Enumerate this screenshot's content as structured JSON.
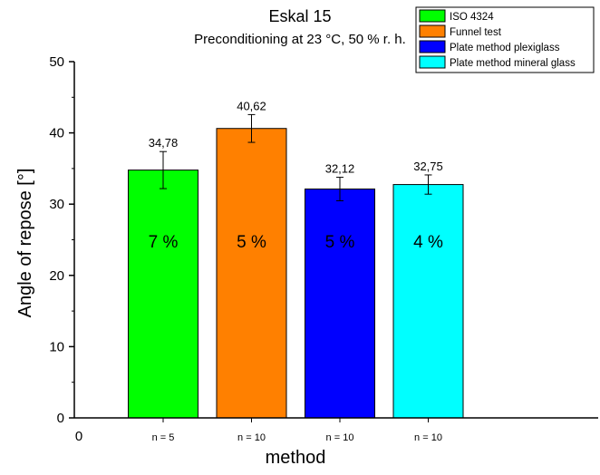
{
  "chart_data": {
    "type": "bar",
    "title": "Eskal 15",
    "subtitle": "Preconditioning at 23 °C, 50 % r. h.",
    "xlabel": "method",
    "ylabel": "Angle of repose [°]",
    "ylim": [
      0,
      50
    ],
    "yticks": [
      0,
      10,
      20,
      30,
      40,
      50
    ],
    "x_origin_label": "0",
    "categories": [
      "n = 5",
      "n = 10",
      "n = 10",
      "n = 10"
    ],
    "series": [
      {
        "name": "ISO 4324",
        "color": "#00ff00",
        "value": 34.78,
        "value_label": "34,78",
        "error": 2.6,
        "percent_label": "7 %"
      },
      {
        "name": "Funnel test",
        "color": "#ff8000",
        "value": 40.62,
        "value_label": "40,62",
        "error": 1.95,
        "percent_label": "5 %"
      },
      {
        "name": "Plate method plexiglass",
        "color": "#0000ff",
        "value": 32.12,
        "value_label": "32,12",
        "error": 1.65,
        "percent_label": "5 %"
      },
      {
        "name": "Plate method mineral glass",
        "color": "#00ffff",
        "value": 32.75,
        "value_label": "32,75",
        "error": 1.35,
        "percent_label": "4 %"
      }
    ],
    "legend_position": "top-right",
    "grid": false
  }
}
